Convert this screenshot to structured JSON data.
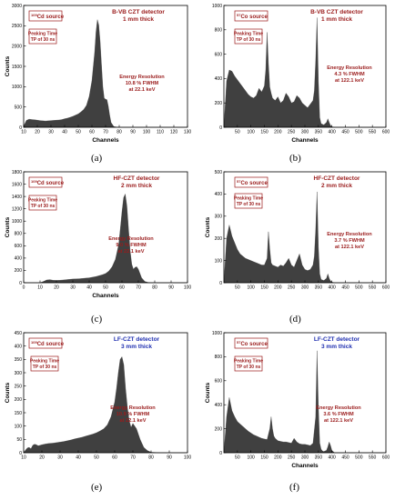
{
  "colors": {
    "spectrum": "#404040",
    "red_text": "#9a1b1b",
    "blue_text": "#1f2fb0",
    "box_border": "#9a1b1b"
  },
  "chart_data": [
    {
      "id": "a",
      "caption": "(a)",
      "type": "area",
      "source": "109Cd source",
      "source_sup": "109",
      "source_rest": "Cd source",
      "detector": "B-VB CZT detector",
      "thickness": "1 mm thick",
      "detector_color": "red",
      "peaking_line1": "Peaking Time",
      "peaking_line2": "TP of 30 ns",
      "res_line1": "Energy Resolution",
      "res_line2": "10.8 % FWHM",
      "res_line3": "at 22.1 keV",
      "xlabel": "Channels",
      "ylabel": "Counts",
      "xlim": [
        10,
        130
      ],
      "ylim": [
        0,
        3000
      ],
      "xticks": [
        10,
        20,
        30,
        40,
        50,
        60,
        70,
        80,
        90,
        100,
        110,
        120,
        130
      ],
      "yticks": [
        0,
        500,
        1000,
        1500,
        2000,
        2500,
        3000
      ],
      "x": [
        10,
        12,
        14,
        16,
        18,
        20,
        22,
        24,
        26,
        28,
        30,
        32,
        34,
        36,
        38,
        40,
        42,
        44,
        46,
        48,
        50,
        52,
        54,
        56,
        58,
        60,
        62,
        63,
        64,
        65,
        66,
        67,
        68,
        69,
        70,
        71,
        72,
        73,
        74,
        76,
        78,
        80,
        85,
        90,
        100,
        110,
        120,
        130
      ],
      "y": [
        30,
        170,
        200,
        190,
        185,
        175,
        165,
        160,
        155,
        160,
        165,
        170,
        175,
        180,
        190,
        210,
        225,
        245,
        270,
        300,
        330,
        380,
        440,
        540,
        760,
        1150,
        1850,
        2350,
        2650,
        2520,
        2120,
        1550,
        1000,
        720,
        690,
        680,
        520,
        300,
        120,
        20,
        5,
        0,
        0,
        0,
        0,
        0,
        0,
        0
      ]
    },
    {
      "id": "b",
      "caption": "(b)",
      "type": "area",
      "source": "57Co source",
      "source_sup": "57",
      "source_rest": "Co source",
      "detector": "B-VB CZT detector",
      "thickness": "1 mm thick",
      "detector_color": "red",
      "peaking_line1": "Peaking Time",
      "peaking_line2": "TP of 30 ns",
      "res_line1": "Energy Resolution",
      "res_line2": "4.3 % FWHM",
      "res_line3": "at 122.1 keV",
      "xlabel": "Channels",
      "ylabel": "",
      "xlim": [
        0,
        600
      ],
      "ylim": [
        0,
        1000
      ],
      "xticks": [
        50,
        100,
        150,
        200,
        250,
        300,
        350,
        400,
        450,
        500,
        550,
        600
      ],
      "yticks": [
        0,
        200,
        400,
        600,
        800,
        1000
      ],
      "x": [
        0,
        10,
        20,
        30,
        40,
        50,
        60,
        70,
        80,
        90,
        100,
        110,
        120,
        130,
        140,
        150,
        155,
        160,
        165,
        170,
        175,
        180,
        190,
        200,
        210,
        220,
        230,
        240,
        250,
        260,
        270,
        280,
        290,
        300,
        310,
        320,
        330,
        335,
        340,
        345,
        350,
        355,
        360,
        370,
        380,
        385,
        390,
        395,
        400,
        410,
        450,
        500,
        550,
        600
      ],
      "y": [
        0,
        380,
        470,
        460,
        420,
        390,
        360,
        330,
        300,
        270,
        250,
        240,
        260,
        320,
        290,
        340,
        470,
        780,
        520,
        330,
        280,
        240,
        220,
        250,
        200,
        220,
        280,
        250,
        200,
        210,
        260,
        240,
        200,
        180,
        160,
        190,
        220,
        300,
        550,
        900,
        380,
        80,
        30,
        20,
        40,
        70,
        40,
        15,
        5,
        0,
        0,
        0,
        0,
        0
      ]
    },
    {
      "id": "c",
      "caption": "(c)",
      "type": "area",
      "source": "109Cd source",
      "source_sup": "109",
      "source_rest": "Cd source",
      "detector": "HF-CZT detector",
      "thickness": "2 mm thick",
      "detector_color": "red",
      "peaking_line1": "Peaking Time",
      "peaking_line2": "TP of 30 ns",
      "res_line1": "Energy Resolution",
      "res_line2": "9.0 % FWHM",
      "res_line3": "at 22.1 keV",
      "xlabel": "Channels",
      "ylabel": "Counts",
      "xlim": [
        0,
        100
      ],
      "ylim": [
        0,
        1800
      ],
      "xticks": [
        0,
        10,
        20,
        30,
        40,
        50,
        60,
        70,
        80,
        90,
        100
      ],
      "yticks": [
        0,
        200,
        400,
        600,
        800,
        1000,
        1200,
        1400,
        1600,
        1800
      ],
      "x": [
        0,
        10,
        12,
        14,
        16,
        18,
        20,
        22,
        24,
        26,
        28,
        30,
        32,
        34,
        36,
        38,
        40,
        42,
        44,
        46,
        48,
        50,
        52,
        54,
        56,
        58,
        59,
        60,
        61,
        62,
        63,
        64,
        65,
        66,
        67,
        68,
        69,
        70,
        72,
        74,
        76,
        80,
        90,
        100
      ],
      "y": [
        0,
        0,
        20,
        45,
        50,
        40,
        38,
        40,
        45,
        50,
        55,
        60,
        62,
        65,
        70,
        75,
        80,
        90,
        100,
        115,
        130,
        150,
        190,
        260,
        380,
        620,
        880,
        1150,
        1380,
        1440,
        1250,
        880,
        520,
        300,
        220,
        250,
        260,
        220,
        80,
        20,
        5,
        0,
        0,
        0
      ]
    },
    {
      "id": "d",
      "caption": "(d)",
      "type": "area",
      "source": "57Co source",
      "source_sup": "57",
      "source_rest": "Co source",
      "detector": "HF-CZT detector",
      "thickness": "2 mm thick",
      "detector_color": "red",
      "peaking_line1": "Peaking Time",
      "peaking_line2": "TP of 30 ns",
      "res_line1": "Energy Resolution",
      "res_line2": "3.7 % FWHM",
      "res_line3": "at 122.1 keV",
      "xlabel": "",
      "ylabel": "Counts",
      "xlim": [
        0,
        600
      ],
      "ylim": [
        0,
        500
      ],
      "xticks": [
        50,
        100,
        150,
        200,
        250,
        300,
        350,
        400,
        450,
        500,
        550,
        600
      ],
      "yticks": [
        0,
        100,
        200,
        300,
        400,
        500
      ],
      "x": [
        0,
        10,
        20,
        30,
        40,
        50,
        60,
        70,
        80,
        90,
        100,
        110,
        120,
        130,
        140,
        150,
        160,
        165,
        170,
        175,
        180,
        190,
        200,
        210,
        220,
        230,
        240,
        250,
        260,
        270,
        280,
        290,
        300,
        310,
        320,
        330,
        335,
        340,
        345,
        350,
        355,
        360,
        370,
        380,
        385,
        390,
        395,
        400,
        410,
        450,
        500,
        550,
        600
      ],
      "y": [
        0,
        200,
        260,
        210,
        180,
        150,
        130,
        120,
        110,
        105,
        100,
        95,
        90,
        85,
        80,
        80,
        110,
        230,
        150,
        90,
        80,
        75,
        70,
        80,
        75,
        90,
        110,
        80,
        70,
        100,
        130,
        80,
        60,
        55,
        60,
        80,
        120,
        240,
        410,
        160,
        40,
        15,
        10,
        20,
        40,
        20,
        8,
        3,
        0,
        0,
        0,
        0,
        0
      ]
    },
    {
      "id": "e",
      "caption": "(e)",
      "type": "area",
      "source": "109Cd source",
      "source_sup": "109",
      "source_rest": "Cd source",
      "detector": "LF-CZT detector",
      "thickness": "3 mm thick",
      "detector_color": "blue",
      "peaking_line1": "Peaking Time",
      "peaking_line2": "TP of 30 ns",
      "res_line1": "Energy Resolution",
      "res_line2": "10.9 % FWHM",
      "res_line3": "at 22.1 keV",
      "xlabel": "",
      "ylabel": "Counts",
      "xlim": [
        10,
        100
      ],
      "ylim": [
        0,
        450
      ],
      "xticks": [
        10,
        20,
        30,
        40,
        50,
        60,
        70,
        80,
        90,
        100
      ],
      "yticks": [
        0,
        50,
        100,
        150,
        200,
        250,
        300,
        350,
        400,
        450
      ],
      "x": [
        10,
        11,
        12,
        13,
        14,
        15,
        16,
        17,
        18,
        20,
        22,
        24,
        26,
        28,
        30,
        32,
        34,
        36,
        38,
        40,
        42,
        44,
        46,
        48,
        50,
        52,
        54,
        56,
        58,
        60,
        61,
        62,
        63,
        64,
        65,
        66,
        67,
        68,
        69,
        70,
        72,
        74,
        76,
        78,
        80,
        85,
        90,
        100
      ],
      "y": [
        0,
        10,
        18,
        20,
        15,
        28,
        32,
        30,
        26,
        30,
        33,
        35,
        36,
        38,
        40,
        42,
        45,
        48,
        52,
        55,
        58,
        62,
        66,
        70,
        75,
        82,
        90,
        105,
        135,
        190,
        240,
        300,
        350,
        360,
        330,
        240,
        170,
        120,
        95,
        110,
        90,
        50,
        20,
        8,
        2,
        0,
        0,
        0
      ]
    },
    {
      "id": "f",
      "caption": "(f)",
      "type": "area",
      "source": "57Co source",
      "source_sup": "57",
      "source_rest": "Co source",
      "detector": "LF-CZT detector",
      "thickness": "3 mm thick",
      "detector_color": "blue",
      "peaking_line1": "Peaking Time",
      "peaking_line2": "TP of 30 ns",
      "res_line1": "Energy Resolution",
      "res_line2": "3.6 % FWHM",
      "res_line3": "at 122.1 keV",
      "xlabel": "Channels",
      "ylabel": "Counts",
      "xlim": [
        0,
        600
      ],
      "ylim": [
        0,
        1000
      ],
      "xticks": [
        50,
        100,
        150,
        200,
        250,
        300,
        350,
        400,
        450,
        500,
        550,
        600
      ],
      "yticks": [
        0,
        200,
        400,
        600,
        800,
        1000
      ],
      "x": [
        0,
        10,
        20,
        30,
        40,
        50,
        60,
        70,
        80,
        90,
        100,
        110,
        120,
        130,
        140,
        150,
        160,
        170,
        175,
        180,
        185,
        190,
        200,
        210,
        220,
        230,
        240,
        250,
        260,
        270,
        280,
        290,
        300,
        310,
        320,
        330,
        340,
        345,
        350,
        355,
        360,
        365,
        370,
        380,
        385,
        390,
        395,
        400,
        410,
        450,
        500,
        550,
        600
      ],
      "y": [
        0,
        300,
        460,
        350,
        300,
        260,
        240,
        220,
        200,
        180,
        165,
        150,
        140,
        130,
        120,
        115,
        110,
        200,
        300,
        200,
        140,
        120,
        100,
        95,
        90,
        90,
        85,
        80,
        120,
        90,
        75,
        70,
        70,
        65,
        60,
        80,
        300,
        850,
        380,
        80,
        30,
        15,
        10,
        20,
        50,
        90,
        60,
        20,
        0,
        0,
        0,
        0,
        0
      ]
    }
  ]
}
